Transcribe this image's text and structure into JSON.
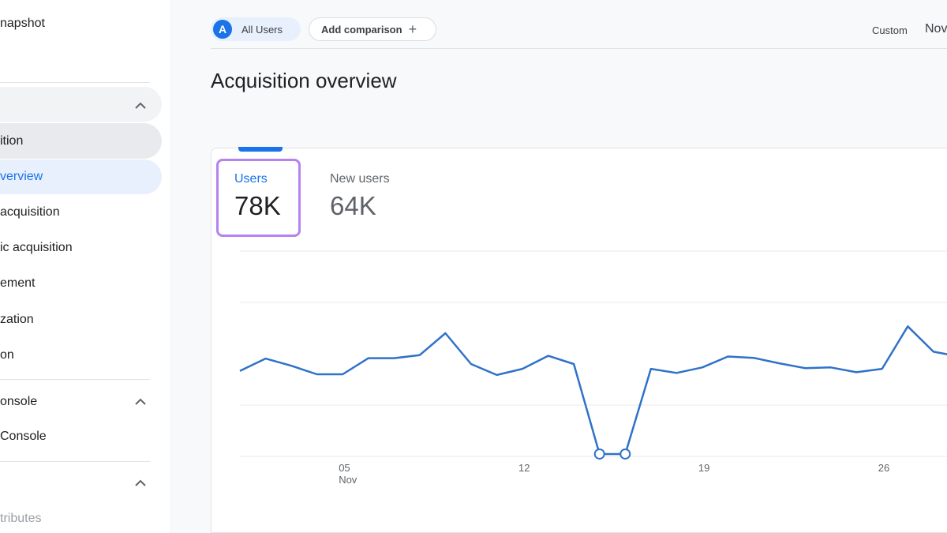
{
  "sidebar": {
    "snapshot_label": "napshot",
    "section1_label": "",
    "items": [
      {
        "label": "ition"
      },
      {
        "label": "verview"
      },
      {
        "label": "acquisition"
      },
      {
        "label": "ic acquisition"
      },
      {
        "label": "ement"
      },
      {
        "label": "zation"
      },
      {
        "label": "on"
      }
    ],
    "section2_label": "onsole",
    "section2_items": [
      {
        "label": "Console"
      }
    ],
    "section3_items": [
      {
        "label": "tributes"
      }
    ]
  },
  "header": {
    "comparison_chip": {
      "avatar_letter": "A",
      "label": "All Users"
    },
    "add_comparison_label": "Add comparison",
    "add_comparison_icon": "+",
    "date_range_type": "Custom",
    "date_range_value": "Nov"
  },
  "page_title": "Acquisition overview",
  "metrics": [
    {
      "label": "Users",
      "value": "78K",
      "selected": true
    },
    {
      "label": "New users",
      "value": "64K",
      "selected": false
    }
  ],
  "colors": {
    "accent": "#1a73e8",
    "line": "#2f72c8",
    "selected_outline": "#b583f0"
  },
  "chart_data": {
    "type": "line",
    "series": [
      {
        "values": [
          2500,
          2860,
          2650,
          2400,
          2400,
          2870,
          2870,
          2960,
          3600,
          2700,
          2380,
          2560,
          2940,
          2700,
          70,
          70,
          2560,
          2440,
          2600,
          2920,
          2880,
          2720,
          2580,
          2600,
          2460,
          2560,
          3800,
          3060,
          2920
        ]
      }
    ],
    "x_tick_labels": [
      {
        "index": 4,
        "label": "05",
        "sublabel": "Nov"
      },
      {
        "index": 11,
        "label": "12",
        "sublabel": ""
      },
      {
        "index": 18,
        "label": "19",
        "sublabel": ""
      },
      {
        "index": 25,
        "label": "26",
        "sublabel": ""
      }
    ],
    "ylim": [
      0,
      6000
    ],
    "grid": true,
    "highlighted_points": [
      14,
      15
    ]
  }
}
